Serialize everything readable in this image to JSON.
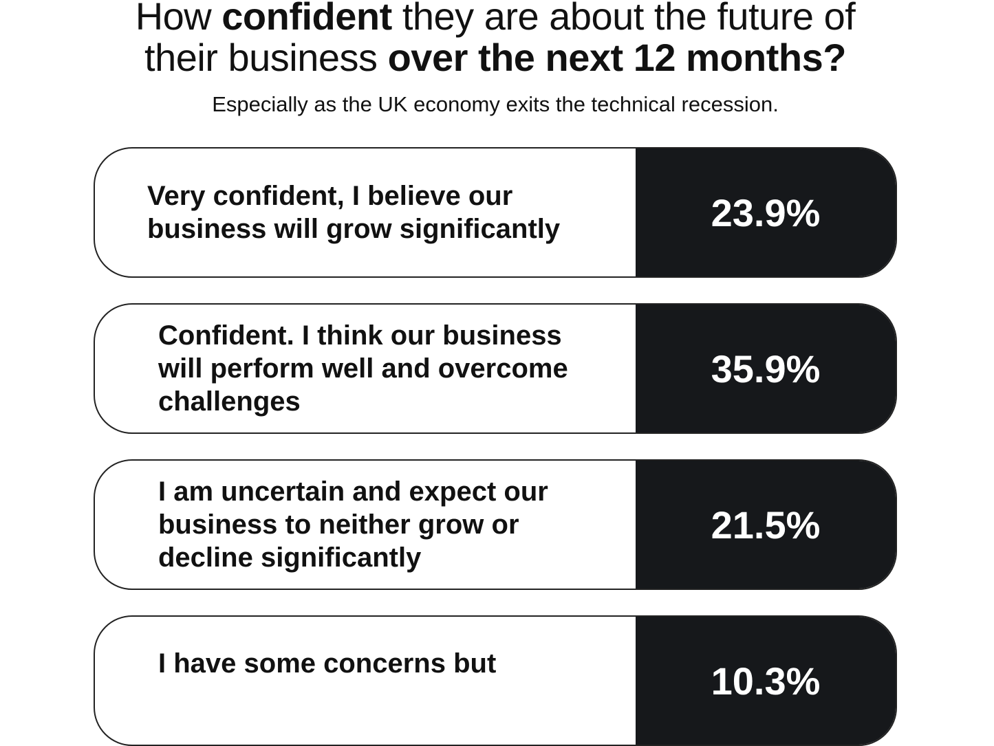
{
  "header": {
    "title": [
      "How ",
      "confident",
      " they are about the future of",
      "their business ",
      "over the next 12 months?"
    ],
    "subtitle": "Especially as the UK economy exits the technical recession."
  },
  "items": [
    {
      "label": "Very confident, I believe our business will grow significantly",
      "value": "23.9%"
    },
    {
      "label": "Confident. I think our business will perform well and overcome challenges",
      "value": "35.9%"
    },
    {
      "label": "I am uncertain and expect our business to neither grow or decline significantly",
      "value": "21.5%"
    },
    {
      "label": "I have some concerns but",
      "value": "10.3%"
    }
  ]
}
